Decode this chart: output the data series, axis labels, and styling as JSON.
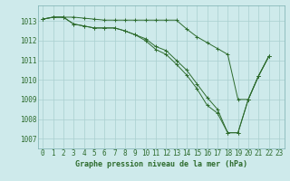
{
  "title": "Graphe pression niveau de la mer (hPa)",
  "bg_color": "#ceeaeb",
  "grid_color": "#aacfcf",
  "line_color": "#2d6b2d",
  "ylim": [
    1006.5,
    1013.8
  ],
  "xlim": [
    -0.5,
    23.5
  ],
  "yticks": [
    1007,
    1008,
    1009,
    1010,
    1011,
    1012,
    1013
  ],
  "xticks": [
    0,
    1,
    2,
    3,
    4,
    5,
    6,
    7,
    8,
    9,
    10,
    11,
    12,
    13,
    14,
    15,
    16,
    17,
    18,
    19,
    20,
    21,
    22,
    23
  ],
  "y1": [
    1013.1,
    1013.2,
    1013.2,
    1013.2,
    1013.15,
    1013.1,
    1013.05,
    1013.05,
    1013.05,
    1013.05,
    1013.05,
    1013.05,
    1013.05,
    1013.05,
    1012.6,
    1012.2,
    1011.9,
    1011.6,
    1011.3,
    1009.0,
    1009.0,
    1010.2,
    1011.2,
    null
  ],
  "y2": [
    1013.1,
    1013.2,
    1013.2,
    1012.85,
    1012.75,
    1012.65,
    1012.65,
    1012.65,
    1012.5,
    1012.3,
    1012.1,
    1011.7,
    1011.5,
    1011.0,
    1010.5,
    1009.8,
    1009.1,
    1008.5,
    1007.3,
    1007.3,
    1009.0,
    1010.2,
    1011.2,
    null
  ],
  "y3": [
    1013.1,
    1013.2,
    1013.2,
    1012.85,
    1012.75,
    1012.65,
    1012.65,
    1012.65,
    1012.5,
    1012.3,
    1012.0,
    1011.55,
    1011.3,
    1010.8,
    1010.25,
    1009.55,
    1008.7,
    1008.3,
    1007.3,
    1007.3,
    1009.0,
    1010.2,
    1011.2,
    null
  ],
  "tick_fontsize": 5.5,
  "xlabel_fontsize": 6.0,
  "lw": 0.7,
  "ms": 3.5
}
